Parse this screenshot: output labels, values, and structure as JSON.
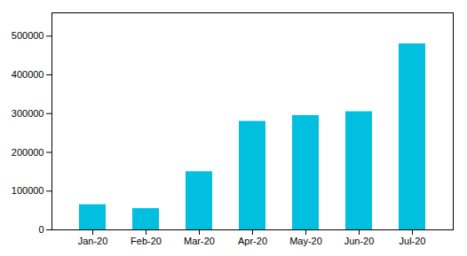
{
  "chart_data": {
    "type": "bar",
    "categories": [
      "Jan-20",
      "Feb-20",
      "Mar-20",
      "Apr-20",
      "May-20",
      "Jun-20",
      "Jul-20"
    ],
    "values": [
      65000,
      55000,
      150000,
      280000,
      295000,
      305000,
      480000
    ],
    "color": "#00BFDF",
    "ylim": [
      0,
      560000
    ],
    "yticks": [
      0,
      100000,
      200000,
      300000,
      400000,
      500000
    ],
    "grid": false
  }
}
